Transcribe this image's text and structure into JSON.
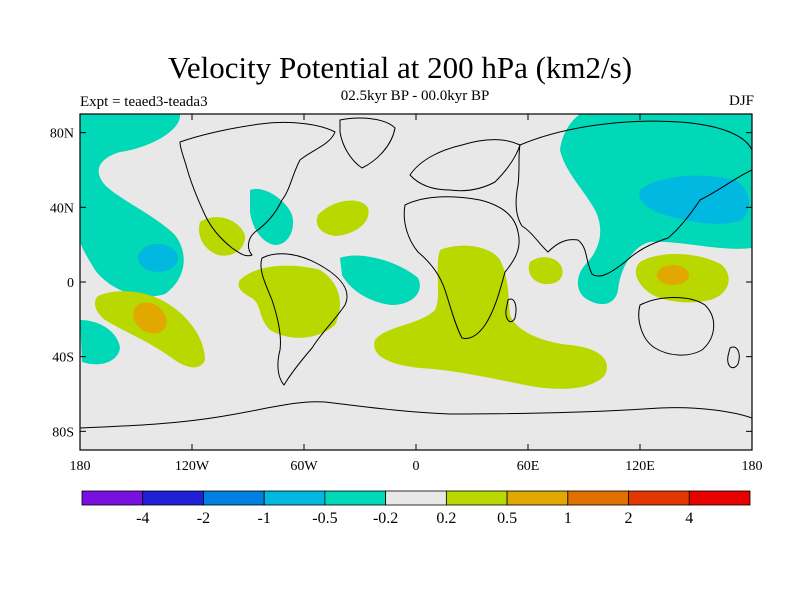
{
  "title": "Velocity Potential at 200 hPa (km2/s)",
  "subtitle": "02.5kyr BP - 00.0kyr BP",
  "experiment": "Expt = teaed3-teada3",
  "season": "DJF",
  "colors": {
    "background": "#e8e8e8",
    "neg_light": "#00d8b8",
    "neg_mid": "#00b8e0",
    "pos_light": "#b8d800",
    "pos_mid": "#e0a800"
  },
  "map": {
    "lon_range": [
      -180,
      180
    ],
    "lat_range": [
      -90,
      90
    ],
    "lon_ticks": [
      {
        "value": -180,
        "label": "180"
      },
      {
        "value": -120,
        "label": "120W"
      },
      {
        "value": -60,
        "label": "60W"
      },
      {
        "value": 0,
        "label": "0"
      },
      {
        "value": 60,
        "label": "60E"
      },
      {
        "value": 120,
        "label": "120E"
      },
      {
        "value": 180,
        "label": "180"
      }
    ],
    "lat_ticks": [
      {
        "value": 80,
        "label": "80N"
      },
      {
        "value": 40,
        "label": "40N"
      },
      {
        "value": 0,
        "label": "0"
      },
      {
        "value": -40,
        "label": "40S"
      },
      {
        "value": -80,
        "label": "80S"
      }
    ]
  },
  "colorbar": {
    "colors": [
      "#7a10e0",
      "#2020d8",
      "#0080e0",
      "#00b8e0",
      "#00d8b8",
      "#e8e8e8",
      "#b8d800",
      "#e0a800",
      "#e07000",
      "#e03800",
      "#e80000"
    ],
    "labels": [
      "-4",
      "-2",
      "-1",
      "-0.5",
      "-0.2",
      "0.2",
      "0.5",
      "1",
      "2",
      "4"
    ]
  }
}
